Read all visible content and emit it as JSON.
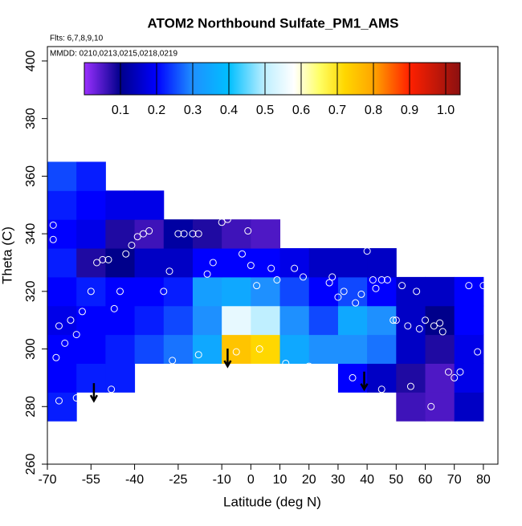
{
  "chart_data": {
    "type": "curtain",
    "title": "ATOM2 Northbound Sulfate_PM1_AMS",
    "flights": "Flts: 6,7,8,9,10",
    "dates": "MMDD: 0210,0213,0215,0218,0219",
    "xlabel": "Latitude (deg N)",
    "ylabel": "Theta (C)",
    "xlim": [
      -70,
      85
    ],
    "ylim": [
      260,
      405
    ],
    "xticks": [
      -70,
      -55,
      -40,
      -25,
      -10,
      0,
      10,
      20,
      30,
      40,
      50,
      60,
      70,
      80
    ],
    "yticks": [
      260,
      280,
      300,
      320,
      340,
      360,
      380,
      400
    ],
    "clim": [
      0,
      1.04
    ],
    "cticks": [
      0.1,
      0.2,
      0.3,
      0.4,
      0.5,
      0.6,
      0.7,
      0.8,
      0.9,
      {
        "value": 1,
        "label": "1.0"
      }
    ],
    "colorscale": [
      [
        0,
        "#9b30ff"
      ],
      [
        0.1,
        "#00008b"
      ],
      [
        0.2,
        "#0000ff"
      ],
      [
        0.3,
        "#1e90ff"
      ],
      [
        0.4,
        "#00bfff"
      ],
      [
        0.5,
        "#bfefff"
      ],
      [
        0.58,
        "#ffffff"
      ],
      [
        0.65,
        "#ffff66"
      ],
      [
        0.72,
        "#ffd700"
      ],
      [
        0.8,
        "#ffa500"
      ],
      [
        0.9,
        "#ff2000"
      ],
      [
        1.04,
        "#8b1010"
      ]
    ],
    "lat_edges": [
      -70,
      -60,
      -50,
      -40,
      -30,
      -20,
      -10,
      0,
      10,
      20,
      30,
      40,
      50,
      60,
      70,
      80
    ],
    "theta_edges": [
      275,
      285,
      295,
      305,
      315,
      325,
      335,
      345,
      355,
      365
    ],
    "field": [
      [
        0.22,
        null,
        null,
        null,
        null,
        null,
        null,
        null,
        null,
        null,
        null,
        null,
        0.06,
        0.05,
        0.15
      ],
      [
        0.2,
        0.22,
        0.22,
        null,
        null,
        null,
        null,
        null,
        null,
        null,
        0.2,
        0.15,
        0.08,
        0.05,
        0.18
      ],
      [
        0.2,
        0.2,
        0.22,
        0.25,
        0.28,
        0.35,
        0.75,
        0.72,
        0.35,
        0.3,
        0.3,
        0.28,
        0.15,
        0.08,
        0.18
      ],
      [
        0.18,
        0.2,
        0.2,
        0.22,
        0.25,
        0.3,
        0.55,
        0.5,
        0.3,
        0.25,
        0.35,
        0.3,
        0.15,
        0.1,
        0.2
      ],
      [
        0.2,
        0.22,
        0.2,
        0.2,
        0.22,
        0.33,
        0.35,
        0.3,
        0.25,
        0.2,
        0.25,
        0.2,
        0.15,
        0.15,
        0.2
      ],
      [
        0.22,
        0.08,
        0.1,
        0.15,
        0.15,
        0.2,
        0.2,
        0.2,
        0.18,
        0.15,
        0.15,
        0.15,
        null,
        null,
        null
      ],
      [
        0.2,
        0.18,
        0.08,
        0.06,
        0.12,
        0.08,
        0.06,
        0.05,
        null,
        null,
        null,
        null,
        null,
        null,
        null
      ],
      [
        0.22,
        0.2,
        0.18,
        0.18,
        null,
        null,
        null,
        null,
        null,
        null,
        null,
        null,
        null,
        null,
        null
      ],
      [
        0.25,
        0.22,
        null,
        null,
        null,
        null,
        null,
        null,
        null,
        null,
        null,
        null,
        null,
        null,
        null
      ]
    ],
    "points": {
      "lat": [
        -68,
        -68,
        -67,
        -66,
        -64,
        -62,
        -60,
        -58,
        -55,
        -53,
        -51,
        -49,
        -47,
        -45,
        -43,
        -41,
        -39,
        -37,
        -35,
        -30,
        -28,
        -25,
        -23,
        -20,
        -18,
        -15,
        -13,
        -10,
        -8,
        -7,
        -3,
        -1,
        0,
        2,
        7,
        9,
        12,
        15,
        18,
        20,
        23,
        25,
        27,
        28,
        30,
        32,
        34,
        36,
        38,
        40,
        42,
        43,
        45,
        47,
        49,
        50,
        52,
        54,
        57,
        58,
        60,
        63,
        65,
        66,
        68,
        70,
        72,
        75,
        78,
        80,
        -66,
        -60,
        -48,
        -27,
        -18,
        -5,
        3,
        12,
        20,
        28,
        35,
        45,
        55,
        62
      ],
      "theta": [
        343,
        338,
        297,
        308,
        302,
        310,
        305,
        313,
        320,
        330,
        331,
        331,
        314,
        320,
        333,
        336,
        339,
        340,
        341,
        320,
        327,
        340,
        340,
        340,
        340,
        326,
        330,
        344,
        345,
        347,
        333,
        341,
        329,
        322,
        328,
        324,
        344,
        328,
        325,
        343,
        344,
        344,
        323,
        325,
        318,
        320,
        337,
        316,
        319,
        334,
        324,
        321,
        324,
        324,
        310,
        310,
        322,
        308,
        320,
        307,
        310,
        308,
        309,
        306,
        292,
        290,
        292,
        322,
        299,
        322,
        282,
        283,
        286,
        296,
        298,
        299,
        300,
        295,
        294,
        292,
        290,
        286,
        287,
        280
      ]
    },
    "arrows": {
      "lat": [
        -54,
        -8,
        39
      ],
      "theta": [
        282,
        294,
        286
      ]
    }
  }
}
